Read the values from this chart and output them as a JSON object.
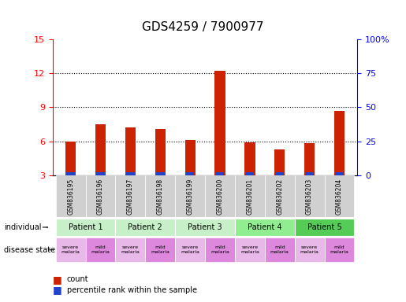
{
  "title": "GDS4259 / 7900977",
  "samples": [
    "GSM836195",
    "GSM836196",
    "GSM836197",
    "GSM836198",
    "GSM836199",
    "GSM836200",
    "GSM836201",
    "GSM836202",
    "GSM836203",
    "GSM836204"
  ],
  "red_values": [
    6.0,
    7.5,
    7.2,
    7.1,
    6.1,
    12.2,
    5.9,
    5.3,
    5.8,
    8.7
  ],
  "blue_values": [
    0.35,
    0.38,
    0.42,
    0.4,
    0.3,
    0.45,
    0.3,
    0.32,
    0.3,
    0.44
  ],
  "ylim_left": [
    3,
    15
  ],
  "yticks_left": [
    3,
    6,
    9,
    12,
    15
  ],
  "ylim_right": [
    0,
    100
  ],
  "yticks_right": [
    0,
    25,
    50,
    75,
    100
  ],
  "ytick_labels_right": [
    "0",
    "25",
    "50",
    "75",
    "100%"
  ],
  "patients": [
    {
      "label": "Patient 1",
      "cols": [
        0,
        1
      ],
      "color": "#c8f0c8"
    },
    {
      "label": "Patient 2",
      "cols": [
        2,
        3
      ],
      "color": "#c8f0c8"
    },
    {
      "label": "Patient 3",
      "cols": [
        4,
        5
      ],
      "color": "#c8f0c8"
    },
    {
      "label": "Patient 4",
      "cols": [
        6,
        7
      ],
      "color": "#90ee90"
    },
    {
      "label": "Patient 5",
      "cols": [
        8,
        9
      ],
      "color": "#55cc55"
    }
  ],
  "disease_states": [
    {
      "label": "severe\nmalaria",
      "col": 0,
      "color": "#e8b8e8"
    },
    {
      "label": "mild\nmalaria",
      "col": 1,
      "color": "#dd88dd"
    },
    {
      "label": "severe\nmalaria",
      "col": 2,
      "color": "#e8b8e8"
    },
    {
      "label": "mild\nmalaria",
      "col": 3,
      "color": "#dd88dd"
    },
    {
      "label": "severe\nmalaria",
      "col": 4,
      "color": "#e8b8e8"
    },
    {
      "label": "mild\nmalaria",
      "col": 5,
      "color": "#dd88dd"
    },
    {
      "label": "severe\nmalaria",
      "col": 6,
      "color": "#e8b8e8"
    },
    {
      "label": "mild\nmalaria",
      "col": 7,
      "color": "#dd88dd"
    },
    {
      "label": "severe\nmalaria",
      "col": 8,
      "color": "#e8b8e8"
    },
    {
      "label": "mild\nmalaria",
      "col": 9,
      "color": "#dd88dd"
    }
  ],
  "bar_width": 0.35,
  "red_color": "#cc2200",
  "blue_color": "#2244cc",
  "grid_color": "#000000",
  "bg_color": "#ffffff",
  "title_fontsize": 11,
  "tick_fontsize": 8,
  "label_fontsize": 8,
  "sample_bg_color": "#d0d0d0"
}
